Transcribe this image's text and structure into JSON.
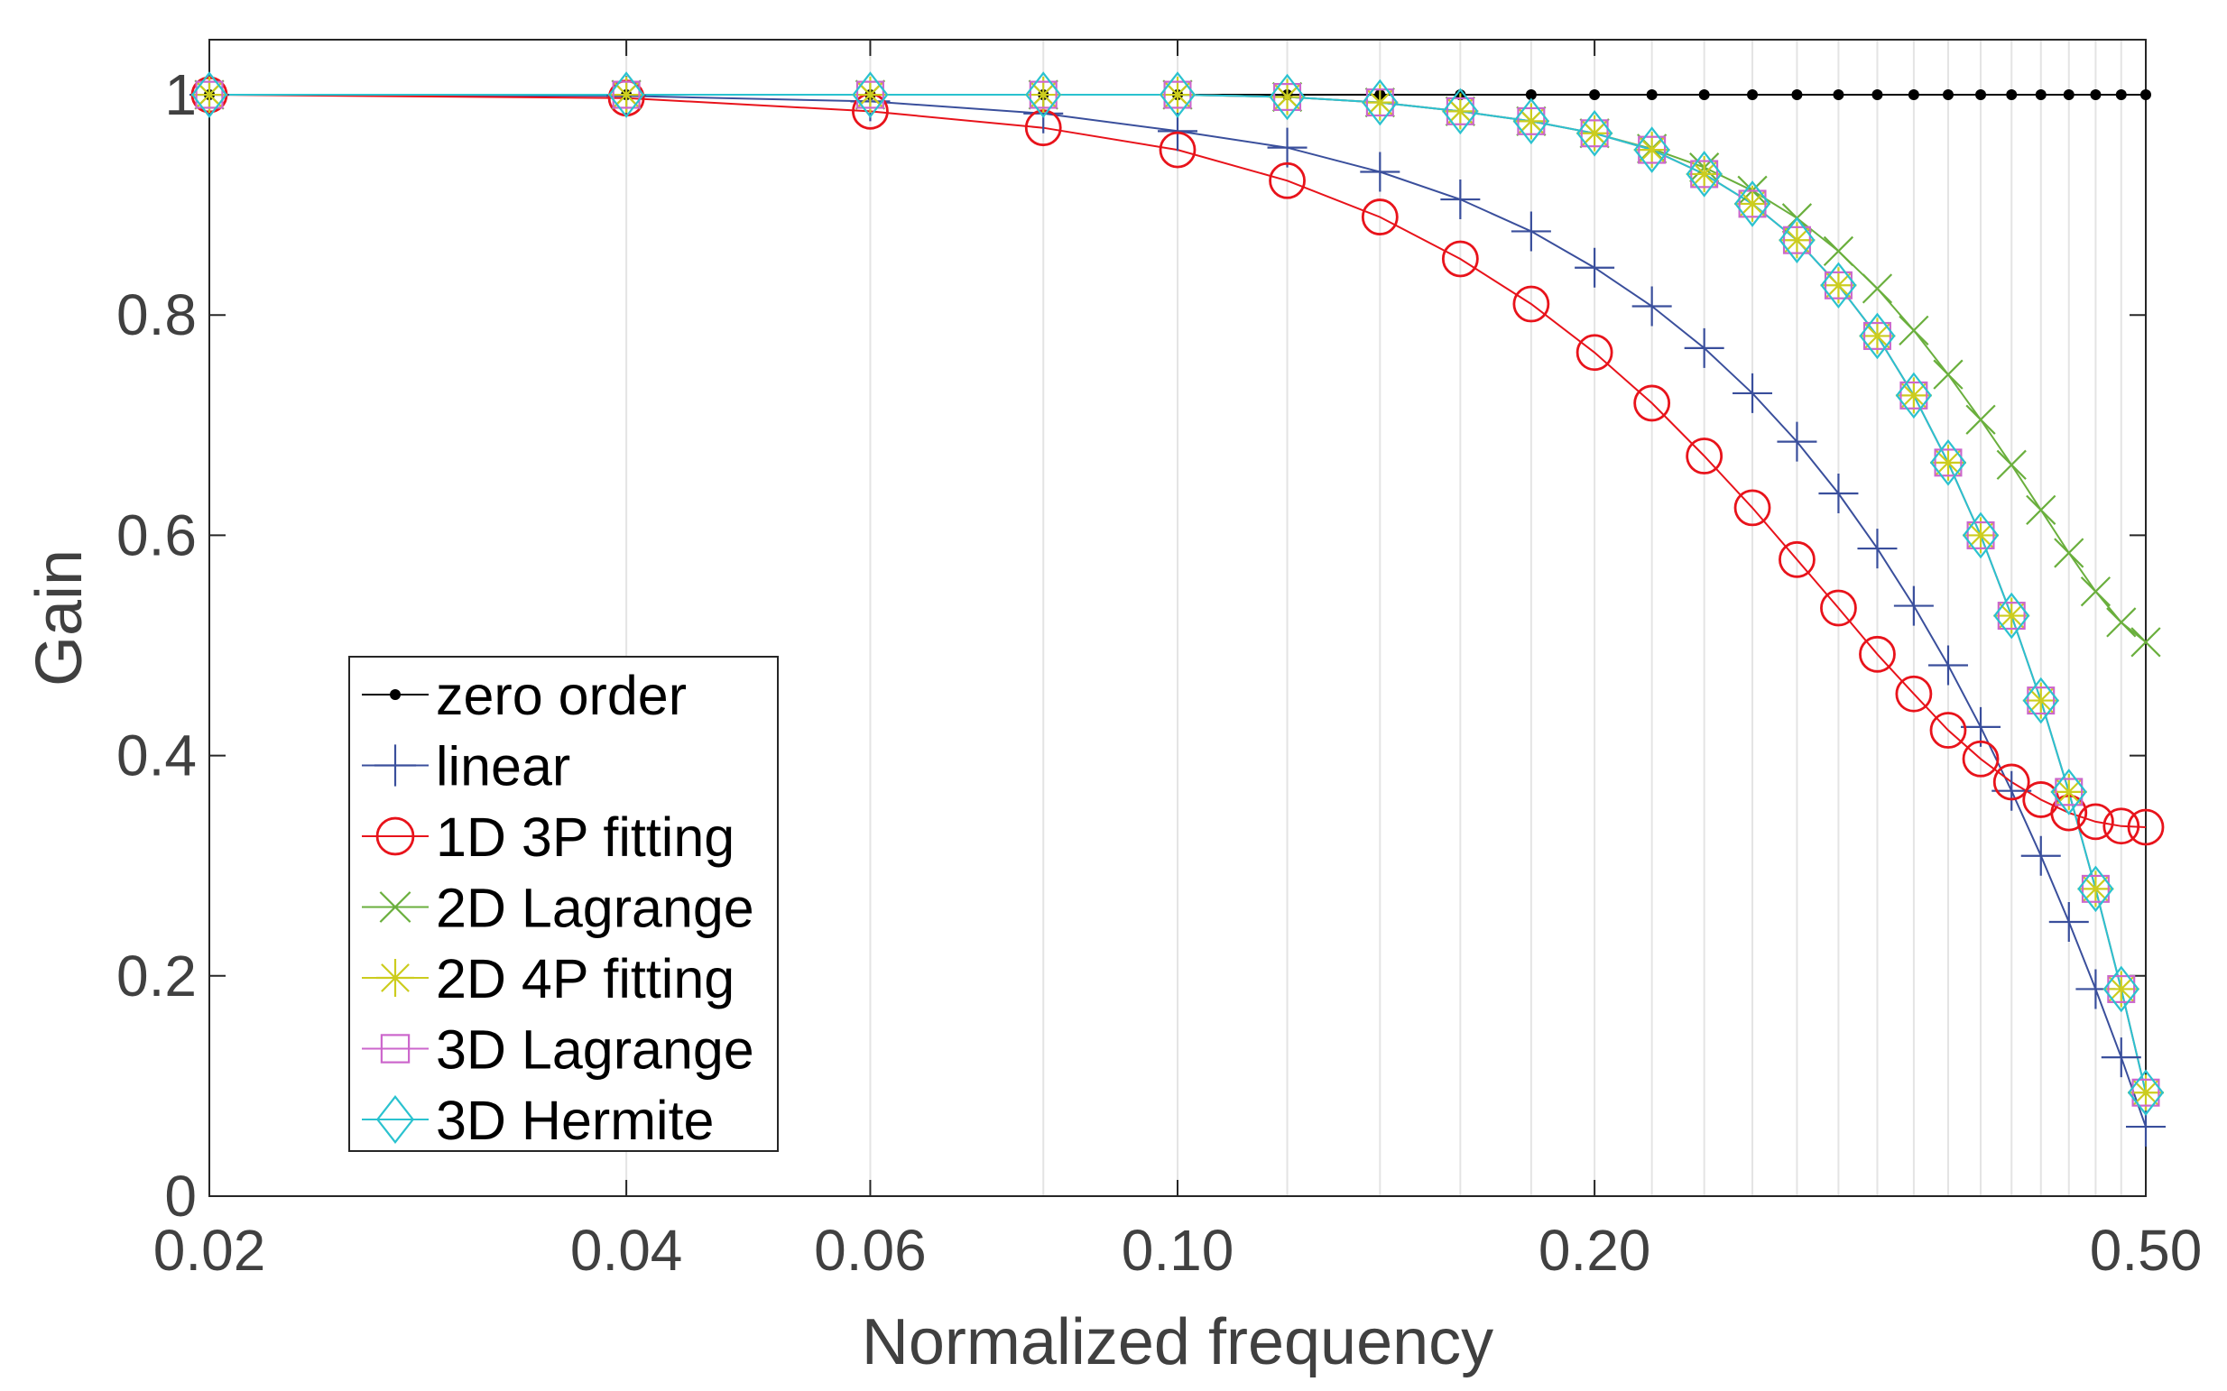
{
  "chart_data": {
    "type": "line",
    "title": "",
    "xlabel": "Normalized frequency",
    "ylabel": "Gain",
    "xscale": "log",
    "xlim": [
      0.02,
      0.5
    ],
    "ylim": [
      0,
      1.05
    ],
    "xticks": [
      0.02,
      0.04,
      0.06,
      0.1,
      0.2,
      0.5
    ],
    "xtick_labels": [
      "0.02",
      "0.04",
      "0.06",
      "0.10",
      "0.20",
      "0.50"
    ],
    "yticks": [
      0,
      0.2,
      0.4,
      0.6,
      0.8,
      1
    ],
    "ytick_labels": [
      "0",
      "0.2",
      "0.4",
      "0.6",
      "0.8",
      "1"
    ],
    "grid": "x-only",
    "legend_position": "lower-left",
    "x": [
      0.02,
      0.04,
      0.06,
      0.08,
      0.1,
      0.12,
      0.14,
      0.16,
      0.18,
      0.2,
      0.22,
      0.24,
      0.26,
      0.28,
      0.3,
      0.32,
      0.34,
      0.36,
      0.38,
      0.4,
      0.42,
      0.44,
      0.46,
      0.48,
      0.5
    ],
    "series": [
      {
        "name": "zero order",
        "color": "#000000",
        "marker": "dot",
        "values": [
          1,
          1,
          1,
          1,
          1,
          1,
          1,
          1,
          1,
          1,
          1,
          1,
          1,
          1,
          1,
          1,
          1,
          1,
          1,
          1,
          1,
          1,
          1,
          1,
          1
        ]
      },
      {
        "name": "linear",
        "color": "#3a4f9c",
        "marker": "plus",
        "values": [
          1.0,
          0.999,
          0.994,
          0.983,
          0.967,
          0.952,
          0.93,
          0.905,
          0.876,
          0.843,
          0.808,
          0.77,
          0.729,
          0.685,
          0.638,
          0.588,
          0.536,
          0.482,
          0.426,
          0.368,
          0.309,
          0.249,
          0.188,
          0.126,
          0.063
        ]
      },
      {
        "name": "1D 3P fitting",
        "color": "#e8131b",
        "marker": "circle",
        "values": [
          1.0,
          0.997,
          0.985,
          0.97,
          0.95,
          0.922,
          0.889,
          0.851,
          0.81,
          0.766,
          0.72,
          0.672,
          0.625,
          0.578,
          0.534,
          0.492,
          0.456,
          0.423,
          0.397,
          0.376,
          0.36,
          0.348,
          0.34,
          0.336,
          0.335
        ]
      },
      {
        "name": "2D Lagrange",
        "color": "#6aaf3d",
        "marker": "x",
        "values": [
          1.0,
          1.0,
          1.0,
          1.0,
          1.0,
          0.998,
          0.993,
          0.985,
          0.976,
          0.965,
          0.951,
          0.934,
          0.913,
          0.888,
          0.858,
          0.824,
          0.786,
          0.746,
          0.705,
          0.664,
          0.623,
          0.584,
          0.549,
          0.521,
          0.503
        ]
      },
      {
        "name": "2D 4P fitting",
        "color": "#cccc1e",
        "marker": "asterisk",
        "values": [
          1.0,
          1.0,
          1.0,
          1.0,
          1.0,
          0.998,
          0.993,
          0.985,
          0.976,
          0.965,
          0.95,
          0.928,
          0.901,
          0.868,
          0.827,
          0.781,
          0.727,
          0.666,
          0.6,
          0.527,
          0.45,
          0.367,
          0.279,
          0.188,
          0.094
        ]
      },
      {
        "name": "3D Lagrange",
        "color": "#cc66cc",
        "marker": "square",
        "values": [
          1.0,
          1.0,
          1.0,
          1.0,
          1.0,
          0.998,
          0.993,
          0.985,
          0.976,
          0.965,
          0.95,
          0.928,
          0.901,
          0.868,
          0.827,
          0.781,
          0.727,
          0.666,
          0.6,
          0.527,
          0.45,
          0.367,
          0.279,
          0.188,
          0.094
        ]
      },
      {
        "name": "3D Hermite",
        "color": "#2ac2cf",
        "marker": "diamond",
        "values": [
          1.0,
          1.0,
          1.0,
          1.0,
          1.0,
          0.998,
          0.993,
          0.985,
          0.976,
          0.965,
          0.95,
          0.928,
          0.901,
          0.868,
          0.827,
          0.781,
          0.727,
          0.666,
          0.6,
          0.527,
          0.45,
          0.367,
          0.279,
          0.188,
          0.094
        ]
      }
    ]
  }
}
